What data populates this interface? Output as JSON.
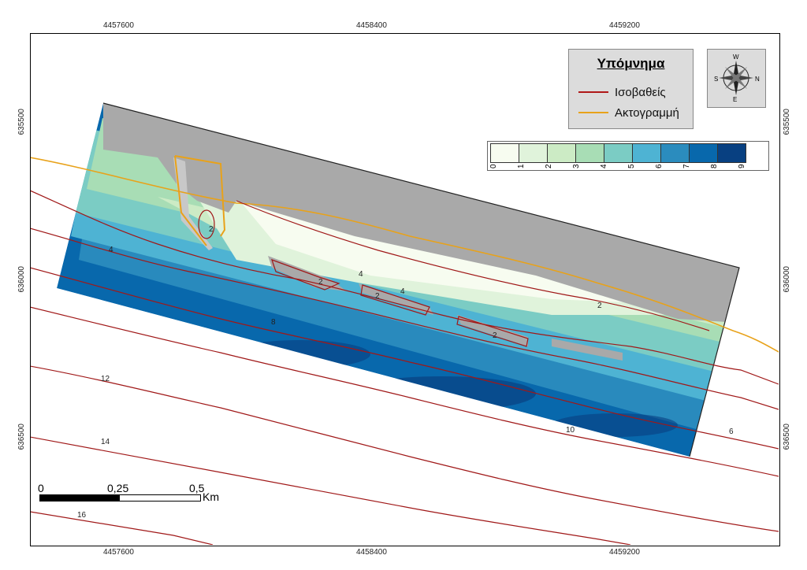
{
  "map": {
    "top_ticks": [
      "4457600",
      "4458400",
      "4459200"
    ],
    "bottom_ticks": [
      "4457600",
      "4458400",
      "4459200"
    ],
    "left_ticks": [
      "635500",
      "636000",
      "636500"
    ],
    "right_ticks": [
      "635500",
      "636000",
      "636500"
    ],
    "contour_labels": [
      "2",
      "4",
      "2",
      "4",
      "2",
      "4",
      "2",
      "8",
      "12",
      "14",
      "16",
      "10",
      "6",
      "2"
    ]
  },
  "legend": {
    "title": "Υπόμνημα",
    "items": [
      {
        "label": "Ισοβαθείς",
        "color": "#b01818"
      },
      {
        "label": "Ακτογραμμή",
        "color": "#e8a21a"
      }
    ]
  },
  "depth_scale": {
    "labels": [
      "0",
      "1",
      "2",
      "3",
      "4",
      "5",
      "6",
      "7",
      "8",
      "9"
    ],
    "colors": [
      "#f7fcf0",
      "#e0f3db",
      "#ccebc5",
      "#a8ddb5",
      "#7bccc4",
      "#4eb3d3",
      "#2b8cbe",
      "#0868ac",
      "#084081"
    ]
  },
  "compass": {
    "n": "N",
    "s": "S",
    "e": "E",
    "w": "W"
  },
  "scalebar": {
    "labels": [
      "0",
      "0,25",
      "0,5"
    ],
    "unit": "Km"
  }
}
